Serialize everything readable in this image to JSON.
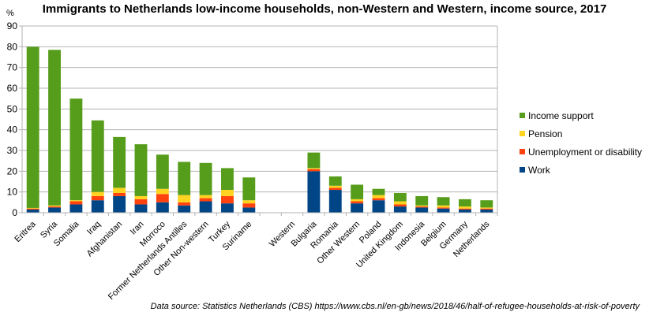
{
  "chart_data": {
    "type": "bar",
    "stacked": true,
    "title": "Immigrants to Netherlands low-income households, non-Western and Western, income source, 2017",
    "ylabel": "%",
    "xlabel": "",
    "ylim": [
      0,
      90
    ],
    "yticks": [
      0,
      10,
      20,
      30,
      40,
      50,
      60,
      70,
      80,
      90
    ],
    "grid": true,
    "legend_position": "right",
    "categories": [
      "Eritrea",
      "Syria",
      "Somalia",
      "Iraq",
      "Afghanistan",
      "Iran",
      "Morroco",
      "Former Netherlands Antilles",
      "Other Non-western",
      "Turkey",
      "Suriname",
      "",
      "Western",
      "Bulgaria",
      "Romania",
      "Other Western",
      "Poland",
      "United Kingdom",
      "Indonesia",
      "Belgium",
      "Germany",
      "Netherlands"
    ],
    "series": [
      {
        "name": "Work",
        "color": "#004586",
        "values": [
          1.5,
          2.5,
          4,
          6,
          8,
          4,
          5,
          3.5,
          5.5,
          4.5,
          2.5,
          0,
          0,
          20,
          11,
          4.5,
          6,
          3,
          2.5,
          2,
          1.5,
          1.5
        ]
      },
      {
        "name": "Unemployment or disability",
        "color": "#ff420e",
        "values": [
          0.5,
          0.5,
          1.5,
          2,
          1.5,
          2.5,
          4,
          1.5,
          1.5,
          3.5,
          2,
          0,
          0,
          1,
          1,
          1,
          1,
          1,
          0.5,
          0.5,
          0.5,
          0.5
        ]
      },
      {
        "name": "Pension",
        "color": "#ffd320",
        "values": [
          0.3,
          0.5,
          0.5,
          2,
          2.5,
          1.5,
          2.5,
          3.5,
          1.5,
          3,
          1.5,
          0,
          0,
          0.5,
          1,
          1,
          1.5,
          1.5,
          0.5,
          1,
          1,
          0.5
        ]
      },
      {
        "name": "Income support",
        "color": "#579d1c",
        "values": [
          77.7,
          75,
          49,
          34.5,
          24.5,
          25,
          16.5,
          16,
          15.5,
          10.5,
          11,
          0,
          0,
          7.5,
          4.5,
          7,
          3,
          4,
          4.5,
          4,
          3.5,
          3.5
        ]
      }
    ],
    "legend_order": [
      "Income support",
      "Pension",
      "Unemployment or disability",
      "Work"
    ],
    "source": "Data source: Statistics Netherlands (CBS) https://www.cbs.nl/en-gb/news/2018/46/half-of-refugee-households-at-risk-of-poverty"
  }
}
